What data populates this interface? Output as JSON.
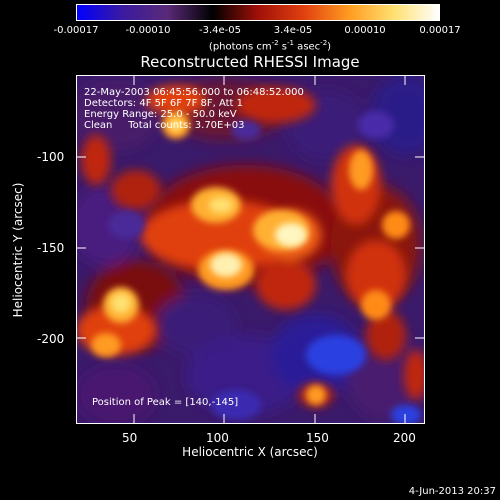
{
  "colorbar": {
    "tick_labels": [
      "-0.00017",
      "-0.00010",
      "-3.4e-05",
      "3.4e-05",
      "0.00010",
      "0.00017"
    ],
    "units_prefix": "(photons cm",
    "units_exp1": "-2",
    "units_mid": " s",
    "units_exp2": "-1",
    "units_mid2": " asec",
    "units_exp3": "-2",
    "units_suffix": ")",
    "colors": [
      "#0000ff",
      "#3a1aa0",
      "#5a2a78",
      "#000000",
      "#a01008",
      "#e04010",
      "#ff9a20",
      "#ffe070",
      "#ffffff"
    ]
  },
  "plot": {
    "title": "Reconstructed RHESSI Image",
    "info_lines": [
      "22-May-2003 06:45:56.000 to 06:48:52.000",
      "Detectors: 4F 5F 6F 7F 8F, Att 1",
      "Energy Range: 25.0 - 50.0 keV",
      "Clean     Total counts: 3.70E+03"
    ],
    "peak_text": "Position of Peak = [140,-145]",
    "x_axis_title": "Heliocentric X (arcsec)",
    "y_axis_title": "Heliocentric Y (arcsec)",
    "x_ticks": [
      "50",
      "100",
      "150",
      "200"
    ],
    "y_ticks": [
      "-100",
      "-150",
      "-200"
    ]
  },
  "footer": {
    "date": "4-Jun-2013 20:37"
  }
}
